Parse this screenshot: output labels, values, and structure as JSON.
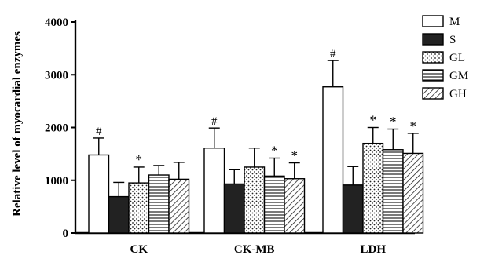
{
  "chart_data": {
    "type": "bar",
    "ylabel": "Relative level of myocardial enzymes",
    "ylim": [
      0,
      4000
    ],
    "yticks": [
      "0",
      "1000",
      "2000",
      "3000",
      "4000"
    ],
    "categories": [
      "CK",
      "CK-MB",
      "LDH"
    ],
    "series": [
      {
        "name": "M",
        "pattern": "open",
        "values": [
          1480,
          1610,
          2770
        ],
        "errors": [
          320,
          380,
          500
        ],
        "marks": [
          "#",
          "#",
          "#"
        ]
      },
      {
        "name": "S",
        "pattern": "solid",
        "values": [
          690,
          930,
          910
        ],
        "errors": [
          270,
          270,
          350
        ],
        "marks": [
          "",
          "",
          ""
        ]
      },
      {
        "name": "GL",
        "pattern": "dots",
        "values": [
          950,
          1250,
          1700
        ],
        "errors": [
          300,
          360,
          300
        ],
        "marks": [
          "*",
          "",
          "*"
        ]
      },
      {
        "name": "GM",
        "pattern": "horizontal",
        "values": [
          1100,
          1080,
          1580
        ],
        "errors": [
          180,
          340,
          390
        ],
        "marks": [
          "",
          "*",
          "*"
        ]
      },
      {
        "name": "GH",
        "pattern": "diagonal",
        "values": [
          1020,
          1030,
          1510
        ],
        "errors": [
          320,
          300,
          380
        ],
        "marks": [
          "",
          "*",
          "*"
        ]
      }
    ],
    "legend": "top-right",
    "grid": false
  }
}
